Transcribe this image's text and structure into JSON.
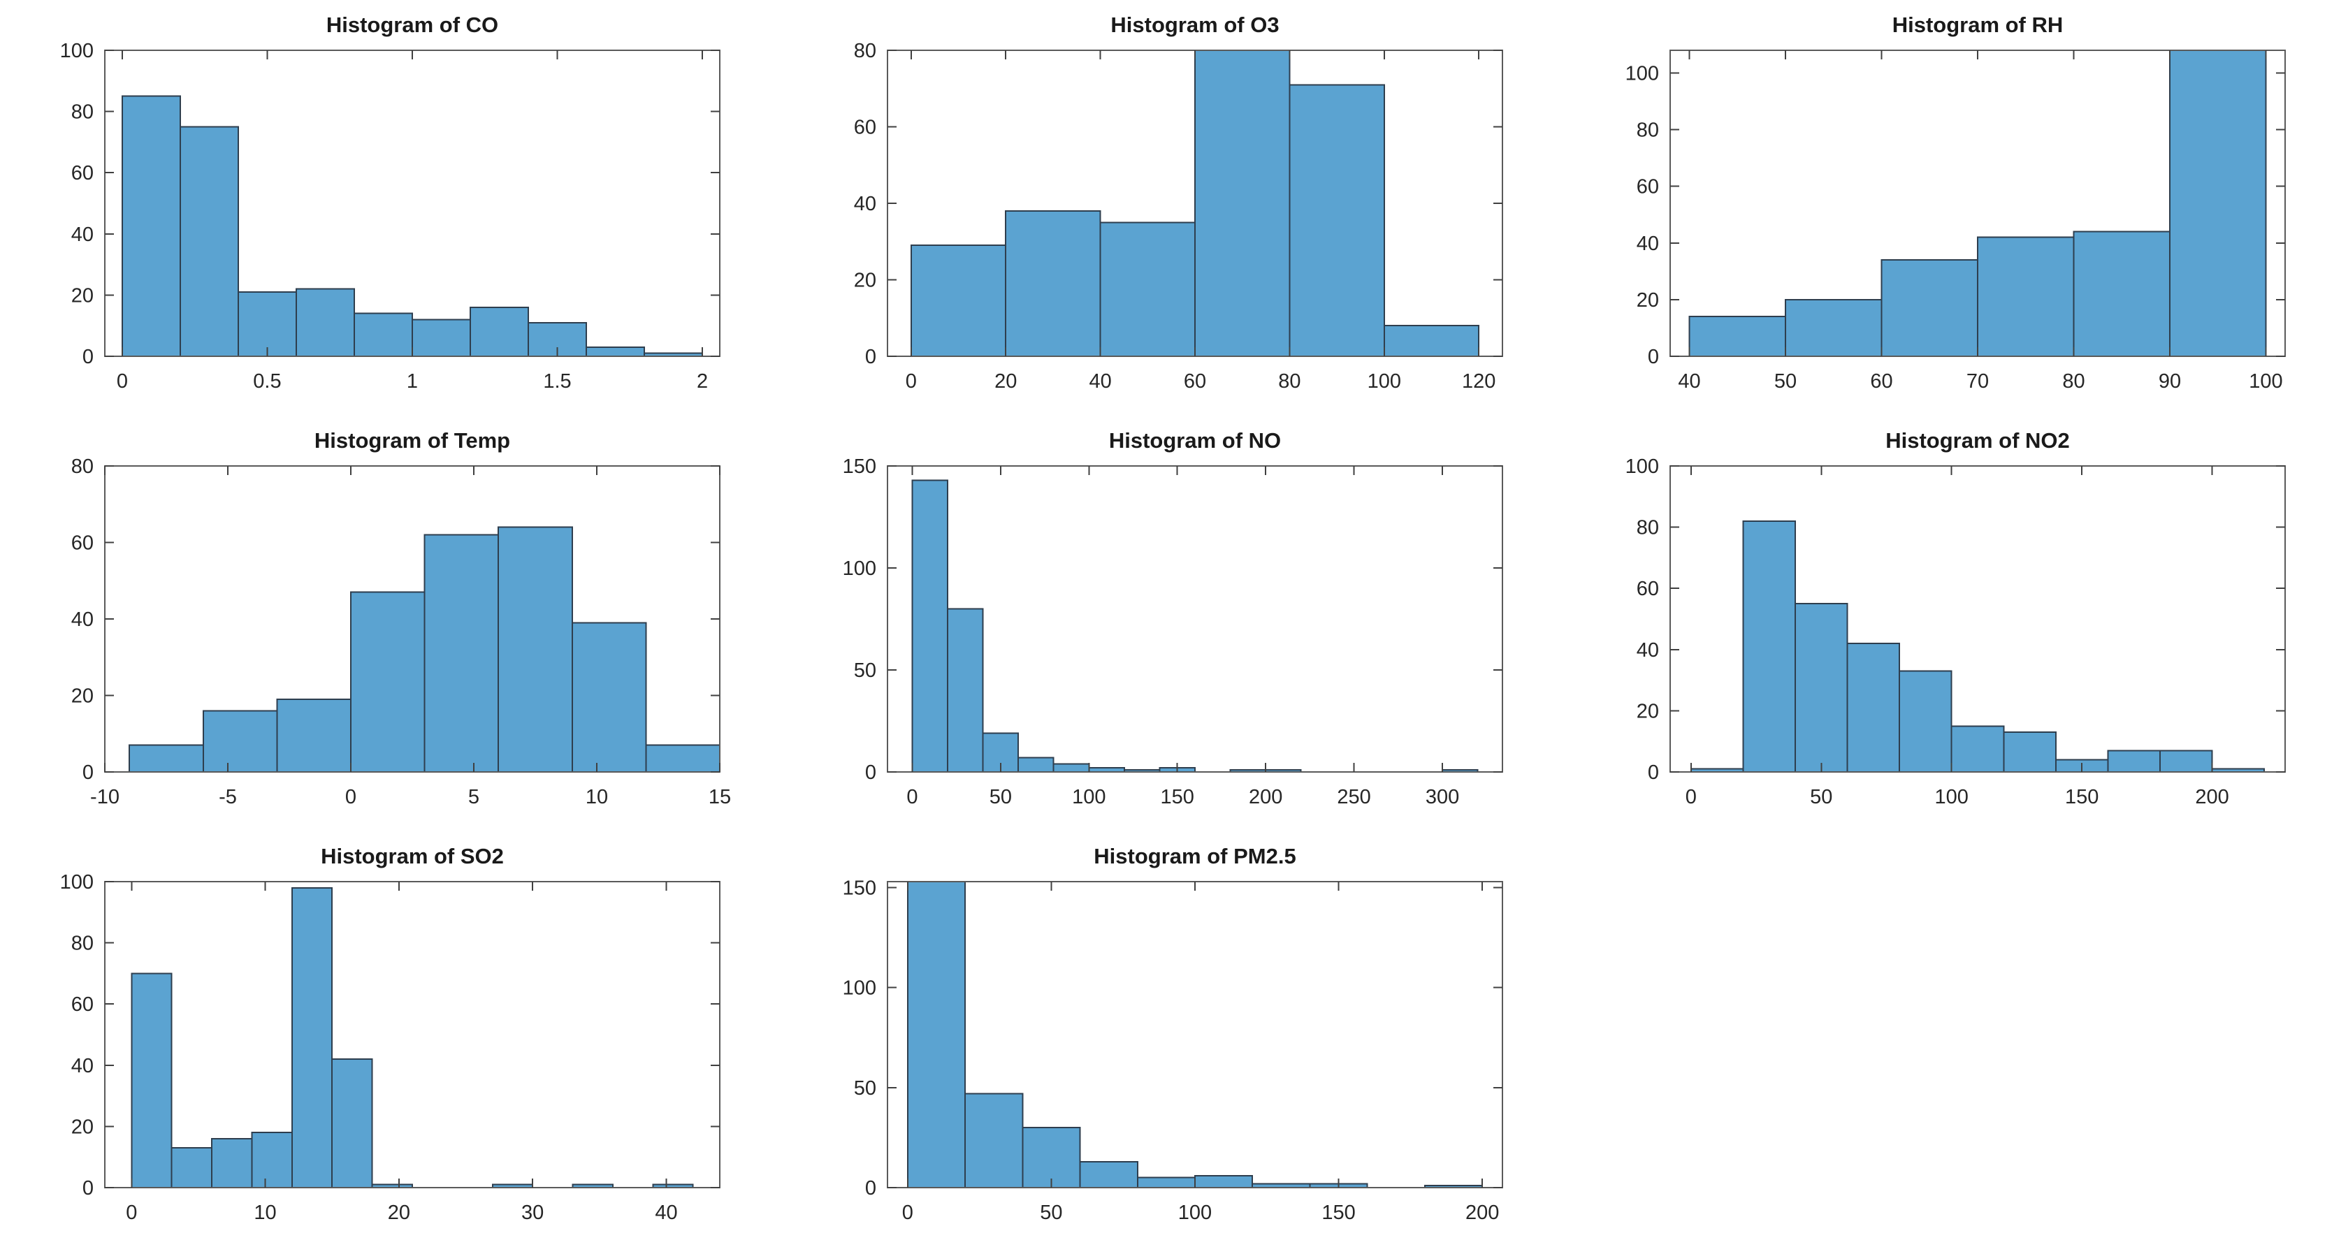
{
  "figure": {
    "background": "#ffffff",
    "grid_rows": 3,
    "grid_cols": 3,
    "empty_cells": 1
  },
  "styles": {
    "bar_fill": "#5BA3D1",
    "bar_edge": "#2E3E4E",
    "axis_color": "#5a5a5a",
    "tick_color": "#404040",
    "label_color": "#262626",
    "title_color": "#1a1a1a"
  },
  "chart_data": [
    {
      "id": "co",
      "type": "bar",
      "title": "Histogram of CO",
      "bin_edges": [
        0,
        0.2,
        0.4,
        0.6,
        0.8,
        1.0,
        1.2,
        1.4,
        1.6,
        1.8,
        2.0
      ],
      "values": [
        85,
        75,
        21,
        22,
        14,
        12,
        16,
        11,
        3,
        1
      ],
      "xlim": [
        -0.06,
        2.06
      ],
      "ylim": [
        0,
        100
      ],
      "xtick_values": [
        0,
        0.5,
        1,
        1.5,
        2
      ],
      "xtick_labels": [
        "0",
        "0.5",
        "1",
        "1.5",
        "2"
      ],
      "ytick_values": [
        0,
        20,
        40,
        60,
        80,
        100
      ],
      "ytick_labels": [
        "0",
        "20",
        "40",
        "60",
        "80",
        "100"
      ],
      "clip_top": [],
      "grid": false,
      "legend": null
    },
    {
      "id": "o3",
      "type": "bar",
      "title": "Histogram of O3",
      "bin_edges": [
        0,
        20,
        40,
        60,
        80,
        100,
        120
      ],
      "values": [
        29,
        38,
        35,
        80,
        71,
        8
      ],
      "xlim": [
        -5,
        125
      ],
      "ylim": [
        0,
        80
      ],
      "xtick_values": [
        0,
        20,
        40,
        60,
        80,
        100,
        120
      ],
      "xtick_labels": [
        "0",
        "20",
        "40",
        "60",
        "80",
        "100",
        "120"
      ],
      "ytick_values": [
        0,
        20,
        40,
        60,
        80
      ],
      "ytick_labels": [
        "0",
        "20",
        "40",
        "60",
        "80"
      ],
      "clip_top": [
        3
      ],
      "grid": false,
      "legend": null
    },
    {
      "id": "rh",
      "type": "bar",
      "title": "Histogram of RH",
      "bin_edges": [
        40,
        50,
        60,
        70,
        80,
        90,
        100
      ],
      "values": [
        14,
        20,
        34,
        42,
        44,
        108
      ],
      "xlim": [
        38,
        102
      ],
      "ylim": [
        0,
        108
      ],
      "xtick_values": [
        40,
        50,
        60,
        70,
        80,
        90,
        100
      ],
      "xtick_labels": [
        "40",
        "50",
        "60",
        "70",
        "80",
        "90",
        "100"
      ],
      "ytick_values": [
        0,
        20,
        40,
        60,
        80,
        100
      ],
      "ytick_labels": [
        "0",
        "20",
        "40",
        "60",
        "80",
        "100"
      ],
      "clip_top": [
        5
      ],
      "grid": false,
      "legend": null
    },
    {
      "id": "temp",
      "type": "bar",
      "title": "Histogram of Temp",
      "bin_edges": [
        -9,
        -6,
        -3,
        0,
        3,
        6,
        9,
        12,
        15
      ],
      "values": [
        7,
        16,
        19,
        47,
        62,
        64,
        39,
        7
      ],
      "xlim": [
        -10,
        15
      ],
      "ylim": [
        0,
        80
      ],
      "xtick_values": [
        -10,
        -5,
        0,
        5,
        10,
        15
      ],
      "xtick_labels": [
        "-10",
        "-5",
        "0",
        "5",
        "10",
        "15"
      ],
      "ytick_values": [
        0,
        20,
        40,
        60,
        80
      ],
      "ytick_labels": [
        "0",
        "20",
        "40",
        "60",
        "80"
      ],
      "clip_top": [],
      "grid": false,
      "legend": null
    },
    {
      "id": "no",
      "type": "bar",
      "title": "Histogram of NO",
      "bin_edges": [
        0,
        20,
        40,
        60,
        80,
        100,
        120,
        140,
        160,
        180,
        200,
        220,
        240,
        260,
        280,
        300,
        320
      ],
      "values": [
        143,
        80,
        19,
        7,
        4,
        2,
        1,
        2,
        0,
        1,
        1,
        0,
        0,
        0,
        0,
        1
      ],
      "xlim": [
        -14,
        334
      ],
      "ylim": [
        0,
        150
      ],
      "xtick_values": [
        0,
        50,
        100,
        150,
        200,
        250,
        300
      ],
      "xtick_labels": [
        "0",
        "50",
        "100",
        "150",
        "200",
        "250",
        "300"
      ],
      "ytick_values": [
        0,
        50,
        100,
        150
      ],
      "ytick_labels": [
        "0",
        "50",
        "100",
        "150"
      ],
      "clip_top": [],
      "grid": false,
      "legend": null
    },
    {
      "id": "no2",
      "type": "bar",
      "title": "Histogram of NO2",
      "bin_edges": [
        0,
        20,
        40,
        60,
        80,
        100,
        120,
        140,
        160,
        180,
        200,
        220
      ],
      "values": [
        1,
        82,
        55,
        42,
        33,
        15,
        13,
        4,
        7,
        7,
        1
      ],
      "xlim": [
        -8,
        228
      ],
      "ylim": [
        0,
        100
      ],
      "xtick_values": [
        0,
        50,
        100,
        150,
        200
      ],
      "xtick_labels": [
        "0",
        "50",
        "100",
        "150",
        "200"
      ],
      "ytick_values": [
        0,
        20,
        40,
        60,
        80,
        100
      ],
      "ytick_labels": [
        "0",
        "20",
        "40",
        "60",
        "80",
        "100"
      ],
      "clip_top": [],
      "grid": false,
      "legend": null
    },
    {
      "id": "so2",
      "type": "bar",
      "title": "Histogram of SO2",
      "bin_edges": [
        0,
        3,
        6,
        9,
        12,
        15,
        18,
        21,
        24,
        27,
        30,
        33,
        36,
        39,
        42
      ],
      "values": [
        70,
        13,
        16,
        18,
        98,
        42,
        1,
        0,
        0,
        1,
        0,
        1,
        0,
        1
      ],
      "xlim": [
        -2,
        44
      ],
      "ylim": [
        0,
        100
      ],
      "xtick_values": [
        0,
        10,
        20,
        30,
        40
      ],
      "xtick_labels": [
        "0",
        "10",
        "20",
        "30",
        "40"
      ],
      "ytick_values": [
        0,
        20,
        40,
        60,
        80,
        100
      ],
      "ytick_labels": [
        "0",
        "20",
        "40",
        "60",
        "80",
        "100"
      ],
      "clip_top": [],
      "grid": false,
      "legend": null
    },
    {
      "id": "pm25",
      "type": "bar",
      "title": "Histogram of PM2.5",
      "bin_edges": [
        0,
        20,
        40,
        60,
        80,
        100,
        120,
        140,
        160,
        180,
        200
      ],
      "values": [
        153,
        47,
        30,
        13,
        5,
        6,
        2,
        2,
        0,
        1
      ],
      "xlim": [
        -7,
        207
      ],
      "ylim": [
        0,
        153
      ],
      "xtick_values": [
        0,
        50,
        100,
        150,
        200
      ],
      "xtick_labels": [
        "0",
        "50",
        "100",
        "150",
        "200"
      ],
      "ytick_values": [
        0,
        50,
        100,
        150
      ],
      "ytick_labels": [
        "0",
        "50",
        "100",
        "150"
      ],
      "clip_top": [
        0
      ],
      "grid": false,
      "legend": null
    }
  ]
}
